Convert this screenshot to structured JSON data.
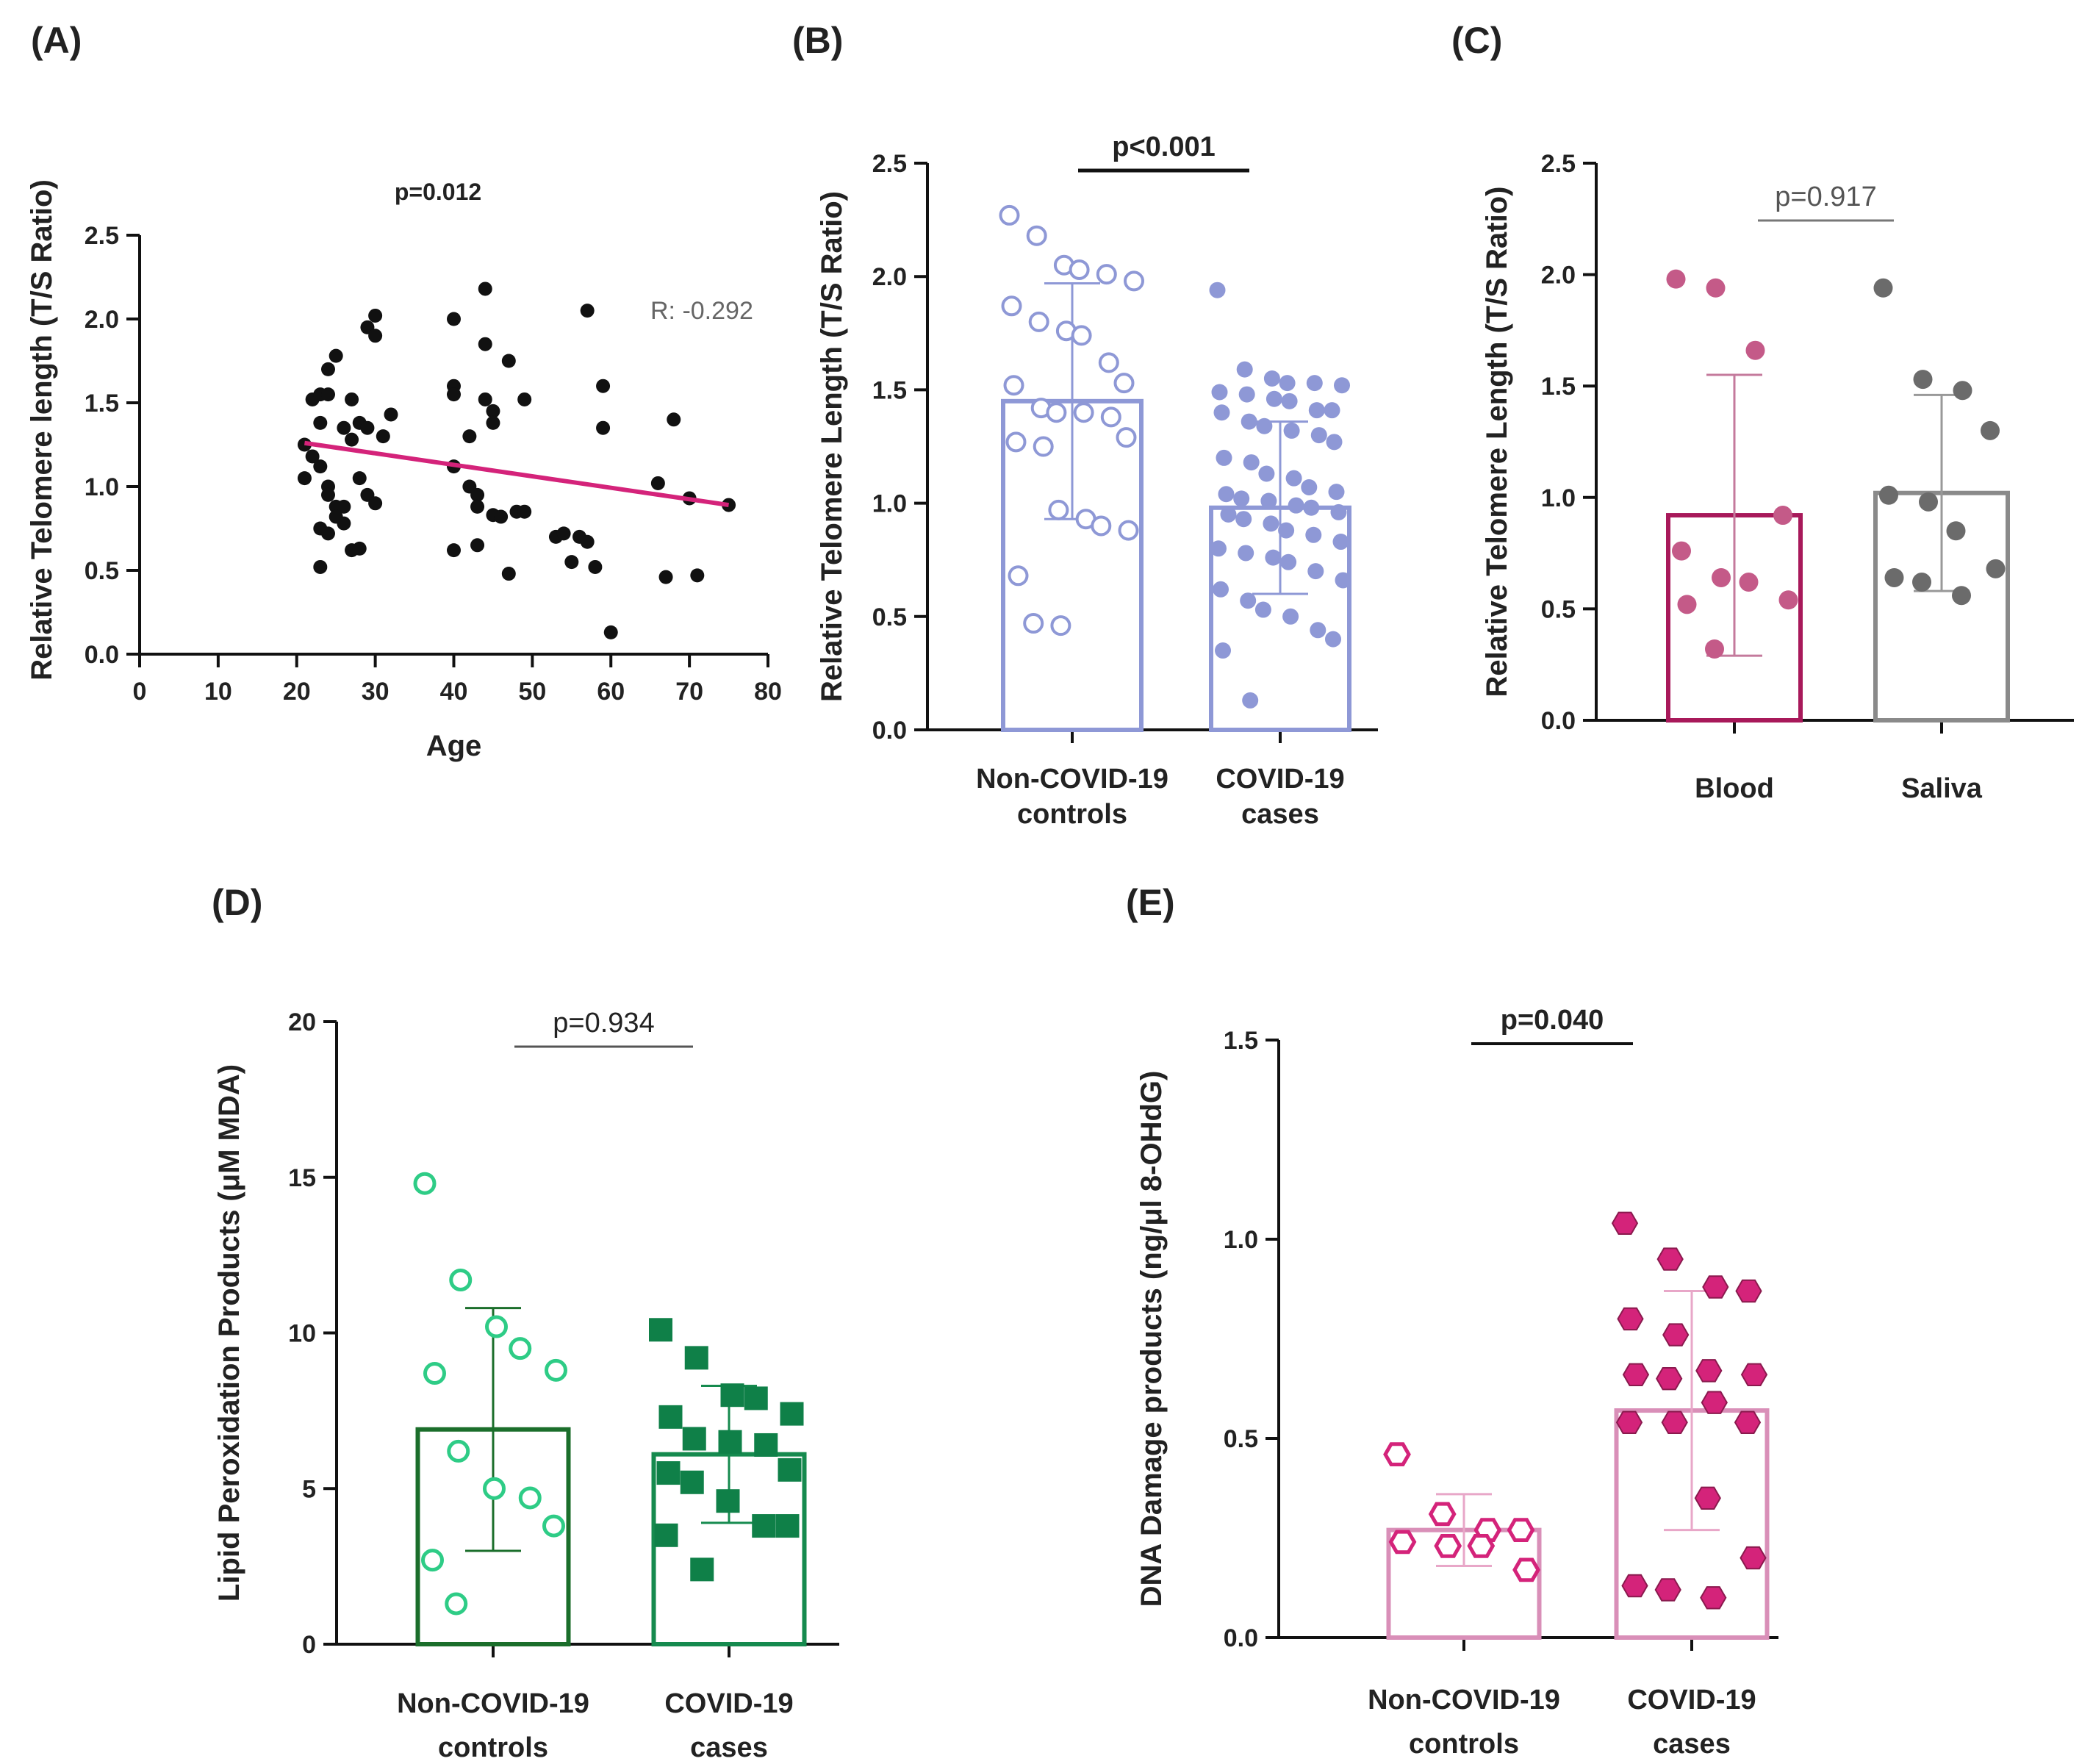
{
  "panel_labels": [
    "(A)",
    "(B)",
    "(C)",
    "(D)",
    "(E)"
  ],
  "chart_data": [
    {
      "panel": "(A)",
      "type": "scatter",
      "xlabel": "Age",
      "ylabel": "Relative Telomere length (T/S Ratio)",
      "xlim": [
        0,
        80
      ],
      "ylim": [
        0,
        2.5
      ],
      "xticks": [
        0,
        10,
        20,
        30,
        40,
        50,
        60,
        70,
        80
      ],
      "yticks": [
        0.0,
        0.5,
        1.0,
        1.5,
        2.0,
        2.5
      ],
      "xtick_labels": [
        "0",
        "10",
        "20",
        "30",
        "40",
        "50",
        "60",
        "70",
        "80"
      ],
      "ytick_labels": [
        "0.0",
        "0.5",
        "1.0",
        "1.5",
        "2.0",
        "2.5"
      ],
      "p_value": "p=0.012",
      "r_value": "R: -0.292",
      "points": [
        [
          21,
          1.25
        ],
        [
          21,
          1.05
        ],
        [
          22,
          1.18
        ],
        [
          22,
          1.52
        ],
        [
          23,
          1.55
        ],
        [
          23,
          1.38
        ],
        [
          23,
          1.12
        ],
        [
          23,
          0.52
        ],
        [
          23,
          0.75
        ],
        [
          24,
          1.7
        ],
        [
          24,
          1.55
        ],
        [
          24,
          1.0
        ],
        [
          24,
          0.95
        ],
        [
          24,
          0.72
        ],
        [
          25,
          1.78
        ],
        [
          25,
          0.88
        ],
        [
          25,
          0.82
        ],
        [
          26,
          1.35
        ],
        [
          26,
          0.78
        ],
        [
          26,
          0.88
        ],
        [
          27,
          1.52
        ],
        [
          27,
          1.28
        ],
        [
          27,
          0.62
        ],
        [
          28,
          1.05
        ],
        [
          28,
          0.63
        ],
        [
          28,
          1.38
        ],
        [
          29,
          1.95
        ],
        [
          29,
          0.95
        ],
        [
          29,
          1.35
        ],
        [
          30,
          1.9
        ],
        [
          30,
          2.02
        ],
        [
          30,
          0.9
        ],
        [
          31,
          1.3
        ],
        [
          32,
          1.43
        ],
        [
          40,
          2.0
        ],
        [
          40,
          1.6
        ],
        [
          40,
          1.55
        ],
        [
          40,
          1.12
        ],
        [
          40,
          0.62
        ],
        [
          42,
          1.3
        ],
        [
          42,
          1.0
        ],
        [
          43,
          0.95
        ],
        [
          43,
          0.88
        ],
        [
          43,
          0.65
        ],
        [
          44,
          1.85
        ],
        [
          44,
          2.18
        ],
        [
          44,
          1.52
        ],
        [
          45,
          1.45
        ],
        [
          45,
          1.38
        ],
        [
          45,
          0.83
        ],
        [
          46,
          0.82
        ],
        [
          47,
          1.75
        ],
        [
          47,
          0.48
        ],
        [
          48,
          0.85
        ],
        [
          49,
          1.52
        ],
        [
          49,
          0.85
        ],
        [
          53,
          0.7
        ],
        [
          54,
          0.72
        ],
        [
          55,
          0.55
        ],
        [
          56,
          0.7
        ],
        [
          57,
          0.67
        ],
        [
          57,
          2.05
        ],
        [
          58,
          0.52
        ],
        [
          59,
          1.6
        ],
        [
          59,
          1.35
        ],
        [
          60,
          0.13
        ],
        [
          66,
          1.02
        ],
        [
          67,
          0.46
        ],
        [
          68,
          1.4
        ],
        [
          70,
          0.93
        ],
        [
          71,
          0.47
        ],
        [
          75,
          0.89
        ]
      ],
      "regression": {
        "x": [
          21,
          75
        ],
        "y": [
          1.26,
          0.89
        ]
      },
      "colors": {
        "points": "#111111",
        "line": "#d4237a"
      }
    },
    {
      "panel": "(B)",
      "type": "bar",
      "ylabel": "Relative Telomere Length (T/S Ratio)",
      "ylim": [
        0,
        2.5
      ],
      "yticks": [
        0.0,
        0.5,
        1.0,
        1.5,
        2.0,
        2.5
      ],
      "ytick_labels": [
        "0.0",
        "0.5",
        "1.0",
        "1.5",
        "2.0",
        "2.5"
      ],
      "categories": [
        [
          "Non-COVID-19",
          "controls"
        ],
        [
          "COVID-19",
          "cases"
        ]
      ],
      "values": [
        1.45,
        0.98
      ],
      "sd": [
        0.52,
        0.38
      ],
      "p_value": "p<0.001",
      "points": [
        [
          2.27,
          2.18,
          2.05,
          2.03,
          2.01,
          1.98,
          1.87,
          1.8,
          1.76,
          1.74,
          1.62,
          1.53,
          1.52,
          1.42,
          1.4,
          1.4,
          1.38,
          1.29,
          1.27,
          1.25,
          0.97,
          0.93,
          0.9,
          0.88,
          0.68,
          0.47,
          0.46
        ],
        [
          1.94,
          1.59,
          1.55,
          1.53,
          1.53,
          1.52,
          1.49,
          1.48,
          1.46,
          1.45,
          1.41,
          1.41,
          1.4,
          1.36,
          1.34,
          1.32,
          1.3,
          1.27,
          1.2,
          1.18,
          1.13,
          1.11,
          1.07,
          1.05,
          1.04,
          1.02,
          1.01,
          0.99,
          0.98,
          0.96,
          0.95,
          0.93,
          0.91,
          0.88,
          0.86,
          0.83,
          0.8,
          0.78,
          0.76,
          0.74,
          0.7,
          0.66,
          0.62,
          0.57,
          0.53,
          0.5,
          0.44,
          0.4,
          0.35,
          0.13
        ]
      ],
      "colors": {
        "bar": "#8e98d6",
        "points": "#8e98d6"
      }
    },
    {
      "panel": "(C)",
      "type": "bar",
      "ylabel": "Relative Telomere Length (T/S Ratio)",
      "ylim": [
        0,
        2.5
      ],
      "yticks": [
        0.0,
        0.5,
        1.0,
        1.5,
        2.0,
        2.5
      ],
      "ytick_labels": [
        "0.0",
        "0.5",
        "1.0",
        "1.5",
        "2.0",
        "2.5"
      ],
      "categories": [
        [
          "Blood"
        ],
        [
          "Saliva"
        ]
      ],
      "values": [
        0.92,
        1.02
      ],
      "sd": [
        0.63,
        0.44
      ],
      "p_value": "p=0.917",
      "points": [
        [
          1.98,
          1.94,
          1.66,
          0.92,
          0.76,
          0.64,
          0.62,
          0.54,
          0.52,
          0.32
        ],
        [
          1.94,
          1.53,
          1.48,
          1.3,
          1.01,
          0.98,
          0.85,
          0.68,
          0.64,
          0.62,
          0.56
        ]
      ],
      "colors": {
        "bar_1": "#a8195a",
        "bar_2": "#8a8a8a",
        "points_1": "#c45a88",
        "points_2": "#6b6b6b"
      }
    },
    {
      "panel": "(D)",
      "type": "bar",
      "ylabel": "Lipid Peroxidation Products (μM MDA)",
      "ylim": [
        0,
        20
      ],
      "yticks": [
        0,
        5,
        10,
        15,
        20
      ],
      "ytick_labels": [
        "0",
        "5",
        "10",
        "15",
        "20"
      ],
      "categories": [
        [
          "Non-COVID-19",
          "controls"
        ],
        [
          "COVID-19",
          "cases"
        ]
      ],
      "values": [
        6.9,
        6.1
      ],
      "sd": [
        3.9,
        2.2
      ],
      "p_value": "p=0.934",
      "points": [
        [
          14.8,
          11.7,
          10.2,
          9.5,
          8.8,
          8.7,
          6.2,
          5.0,
          4.7,
          3.8,
          2.7,
          1.3
        ],
        [
          10.1,
          9.2,
          8.0,
          7.9,
          7.4,
          7.3,
          6.6,
          6.5,
          6.4,
          5.6,
          5.5,
          5.2,
          4.6,
          3.8,
          3.8,
          3.5,
          2.4
        ]
      ],
      "colors": {
        "bar_1": "#1b6e2b",
        "bar_2": "#158a4e",
        "points_1": "#2ecc86",
        "points_2": "#0f8048"
      }
    },
    {
      "panel": "(E)",
      "type": "bar",
      "ylabel": "DNA Damage products (ng/μl 8-OHdG)",
      "ylim": [
        0,
        1.5
      ],
      "yticks": [
        0.0,
        0.5,
        1.0,
        1.5
      ],
      "ytick_labels": [
        "0.0",
        "0.5",
        "1.0",
        "1.5"
      ],
      "categories": [
        [
          "Non-COVID-19",
          "controls"
        ],
        [
          "COVID-19",
          "cases"
        ]
      ],
      "values": [
        0.27,
        0.57
      ],
      "sd": [
        0.09,
        0.3
      ],
      "p_value": "p=0.040",
      "points": [
        [
          0.46,
          0.31,
          0.27,
          0.27,
          0.24,
          0.23,
          0.23,
          0.17
        ],
        [
          1.04,
          0.95,
          0.88,
          0.87,
          0.8,
          0.76,
          0.67,
          0.66,
          0.66,
          0.65,
          0.59,
          0.54,
          0.54,
          0.54,
          0.35,
          0.2,
          0.13,
          0.12,
          0.1
        ]
      ],
      "colors": {
        "bar_1": "#d98fb8",
        "bar_2": "#d98fb8",
        "points": "#d4237a",
        "point_edge": "#8a1a4e"
      }
    }
  ]
}
